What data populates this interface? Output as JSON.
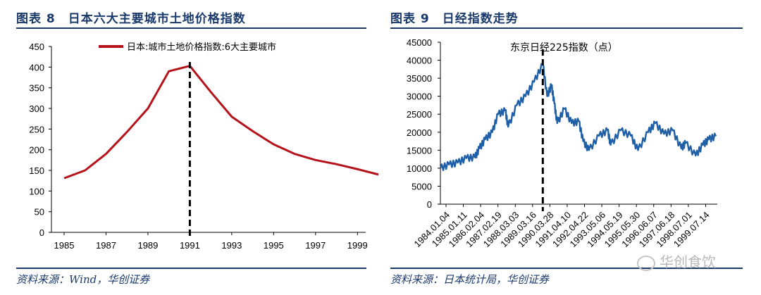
{
  "chart_data": [
    {
      "type": "line",
      "title": "图表 8　日本六大主要城市土地价格指数",
      "legend": "日本:城市土地价格指数:6大主要城市",
      "source": "资料来源：Wind，华创证券",
      "x": [
        1985,
        1986,
        1987,
        1988,
        1989,
        1990,
        1991,
        1992,
        1993,
        1994,
        1995,
        1996,
        1997,
        1998,
        1999,
        2000
      ],
      "values": [
        131,
        150,
        190,
        243,
        300,
        390,
        403,
        340,
        280,
        245,
        213,
        190,
        175,
        165,
        153,
        140
      ],
      "xlim": [
        1985,
        2000
      ],
      "ylim": [
        0,
        450
      ],
      "xticks": [
        "1985",
        "1987",
        "1989",
        "1991",
        "1993",
        "1995",
        "1997",
        "1999"
      ],
      "yticks": [
        "0",
        "50",
        "100",
        "150",
        "200",
        "250",
        "300",
        "350",
        "400",
        "450"
      ],
      "marker_x": 1991,
      "line_color": "#b5121b"
    },
    {
      "type": "line",
      "title": "图表 9　日经指数走势",
      "annotation": "东京日经225指数（点）",
      "source": "资料来源：日本统计局，华创证券",
      "x": [
        "1984.01",
        "1984.07",
        "1985.01",
        "1985.07",
        "1986.01",
        "1986.04",
        "1986.08",
        "1987.01",
        "1987.05",
        "1987.10",
        "1987.12",
        "1988.06",
        "1988.12",
        "1989.06",
        "1989.12",
        "1990.03",
        "1990.06",
        "1990.08",
        "1990.10",
        "1991.03",
        "1991.08",
        "1992.01",
        "1992.04",
        "1992.08",
        "1993.03",
        "1993.09",
        "1993.11",
        "1994.06",
        "1995.01",
        "1995.06",
        "1996.01",
        "1996.06",
        "1996.12",
        "1997.06",
        "1997.12",
        "1998.03",
        "1998.10",
        "1999.03",
        "1999.07",
        "1999.12"
      ],
      "values": [
        10000,
        11000,
        11500,
        12800,
        13000,
        15500,
        18000,
        20000,
        25000,
        26000,
        21500,
        27500,
        30000,
        34000,
        38900,
        30000,
        33000,
        28000,
        22500,
        26500,
        22500,
        23000,
        17500,
        15000,
        19000,
        20500,
        16500,
        20500,
        19000,
        15000,
        20000,
        22500,
        19500,
        20500,
        15500,
        17000,
        13500,
        16500,
        18000,
        18900
      ],
      "xtick_labels": [
        "1984.01.04",
        "1985.01.11",
        "1986.02.04",
        "1987.02.19",
        "1988.03.03",
        "1989.03.16",
        "1990.03.28",
        "1991.04.10",
        "1992.04.22",
        "1993.05.06",
        "1994.05.19",
        "1995.05.30",
        "1996.06.07",
        "1997.06.18",
        "1998.07.01",
        "1999.07.14"
      ],
      "yticks": [
        "0",
        "5000",
        "10000",
        "15000",
        "20000",
        "25000",
        "30000",
        "35000",
        "40000",
        "45000"
      ],
      "ylim": [
        0,
        45000
      ],
      "marker_x": "1989.12",
      "line_color": "#1f5fa8"
    }
  ],
  "watermark": "华创食饮"
}
